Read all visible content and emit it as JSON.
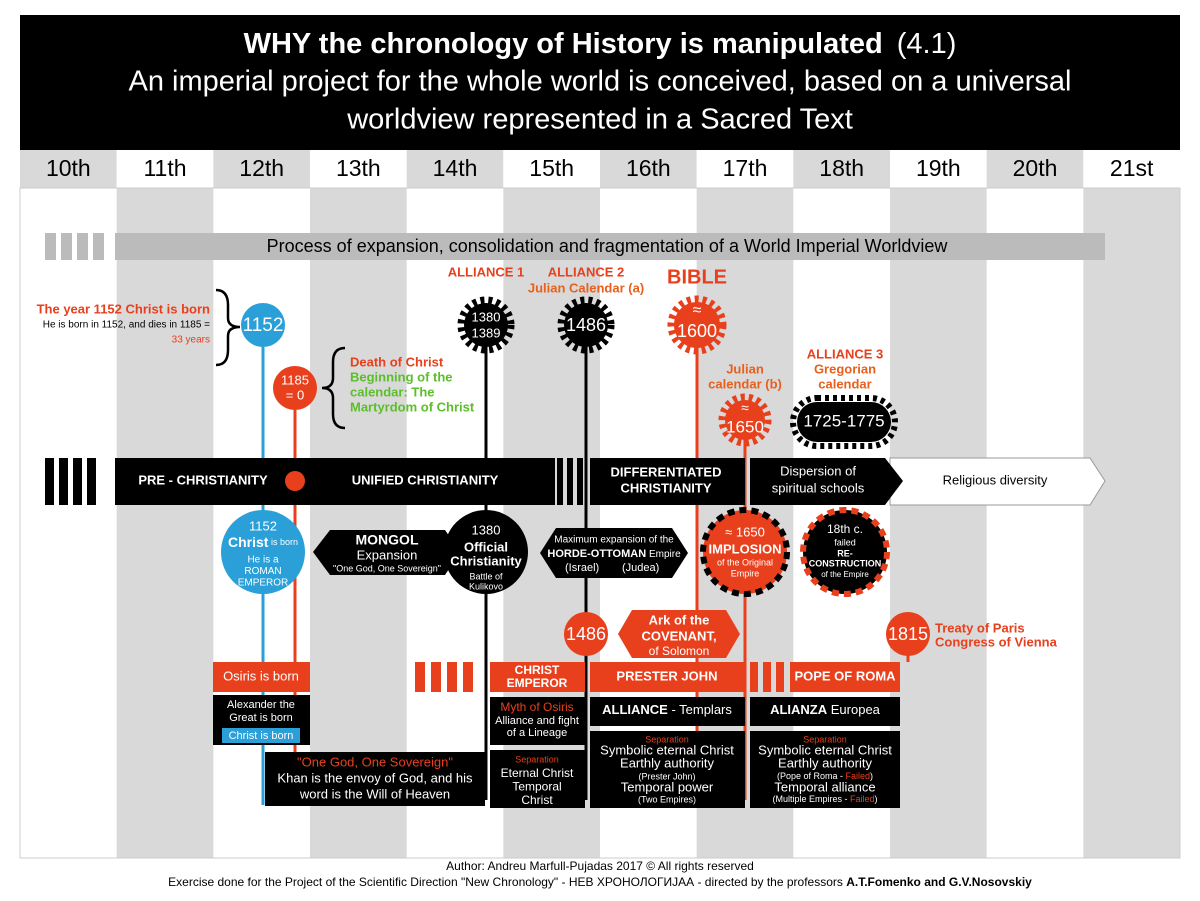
{
  "header": {
    "title": "WHY the chronology of History is manipulated",
    "version": "(4.1)",
    "subtitle": [
      "An imperial project for the whole world is conceived, based on a universal",
      "worldview represented in a Sacred Text"
    ]
  },
  "centuries": [
    "10th",
    "11th",
    "12th",
    "13th",
    "14th",
    "15th",
    "16th",
    "17th",
    "18th",
    "19th",
    "20th",
    "21st"
  ],
  "banner": "Process of expansion, consolidation and fragmentation of a World Imperial Worldview",
  "birth": {
    "title": "The year 1152 Christ is born",
    "text": "He is born in 1152, and dies in 1185 =",
    "duration": "33 years",
    "year": 1152
  },
  "death": {
    "year": [
      "1185",
      "= 0"
    ],
    "title": "Death of Christ",
    "calendar": [
      "Beginning of the",
      "calendar: The",
      "Martyrdom of Christ"
    ]
  },
  "alliance_1": {
    "label": "ALLIANCE 1",
    "years": [
      1380,
      1389
    ]
  },
  "alliance_2": {
    "label": "ALLIANCE 2",
    "calendar": "Julian Calendar (a)",
    "year": 1486
  },
  "bible": {
    "label": "BIBLE",
    "year": [
      "≈",
      "1600"
    ]
  },
  "julian_b": {
    "label": [
      "Julian",
      "calendar (b)"
    ],
    "year": [
      "≈",
      "1650"
    ]
  },
  "alliance_3": {
    "label": "ALLIANCE 3",
    "calendar": [
      "Gregorian",
      "calendar"
    ],
    "years": "1725-1775"
  },
  "eras": {
    "pre": "PRE - CHRISTIANITY",
    "unified": "UNIFIED CHRISTIANITY",
    "differentiated": [
      "DIFFERENTIATED",
      "CHRISTIANITY"
    ],
    "dispersion": [
      "Dispersion of",
      "spiritual schools"
    ],
    "diversity": "Religious diversity"
  },
  "christ_born": {
    "year": 1152,
    "name": "Christ",
    "verb": " is born",
    "lines": [
      "He is a",
      "ROMAN",
      "EMPEROR"
    ]
  },
  "mongol": {
    "title": "MONGOL",
    "subtitle": "Expansion",
    "motto": "\"One God, One Sovereign\""
  },
  "official": {
    "year": 1380,
    "title": [
      "Official",
      "Christianity"
    ],
    "battle": [
      "Battle of",
      "Kulikovo"
    ]
  },
  "horde": {
    "intro": "Maximum expansion of the",
    "name": "HORDE-OTTOMAN",
    "suffix": " Empire",
    "places": [
      "(Israel)",
      "(Judea)"
    ]
  },
  "implosion": {
    "year": "≈ 1650",
    "title": "IMPLOSION",
    "lines": [
      "of the Original",
      "Empire"
    ]
  },
  "reconstruction": {
    "century": "18th c.",
    "status": "failed",
    "title": [
      "RE-",
      "CONSTRUCTION"
    ],
    "line": "of the Empire"
  },
  "ark": {
    "year": 1486,
    "lines": [
      "Ark of the",
      "COVENANT,",
      "of Solomon"
    ]
  },
  "treaty": {
    "year": 1815,
    "lines": [
      "Treaty of Paris",
      "Congress of Vienna"
    ]
  },
  "osiris": {
    "label": "Osiris is born",
    "lines": [
      "Alexander the",
      "Great is born"
    ],
    "christ": "Christ is born"
  },
  "sovereign": {
    "motto": "\"One God, One Sovereign\"",
    "lines": [
      "Khan is the envoy of God, and his",
      "word is the Will of Heaven"
    ]
  },
  "christ_emperor": {
    "label": [
      "CHRIST",
      "EMPEROR"
    ],
    "myth": "Myth of Osiris",
    "lines": [
      "Alliance and fight",
      "of a Lineage"
    ],
    "separation": "Separation",
    "result": [
      "Eternal Christ",
      "Temporal",
      "Christ"
    ]
  },
  "prester_john": {
    "label": "PRESTER JOHN",
    "alliance": "ALLIANCE",
    "partner": " - Templars",
    "separation": "Separation",
    "lines": [
      "Symbolic eternal Christ",
      "Earthly authority",
      "(Prester John)",
      "Temporal power",
      "(Two Empires)"
    ]
  },
  "pope": {
    "label": "POPE OF ROMA",
    "alliance": "ALIANZA",
    "partner": " Europea",
    "separation": "Separation",
    "lines": [
      "Symbolic eternal Christ",
      "Earthly authority"
    ],
    "authority_note": [
      "(Pope of Roma - ",
      "Failed",
      ")"
    ],
    "power": "Temporal alliance",
    "power_note": [
      "(Multiple Empires - ",
      "Failed",
      ")"
    ]
  },
  "footer": {
    "author": "Author: Andreu Marfull-Pujadas 2017 © All rights reserved",
    "project": "Exercise done for the Project of the Scientific Direction \"New Chronology\" - НЕВ ХРОНОЛОГИJАА - directed by the professors ",
    "professors": "A.T.Fomenko and G.V.Nosovskiy"
  }
}
